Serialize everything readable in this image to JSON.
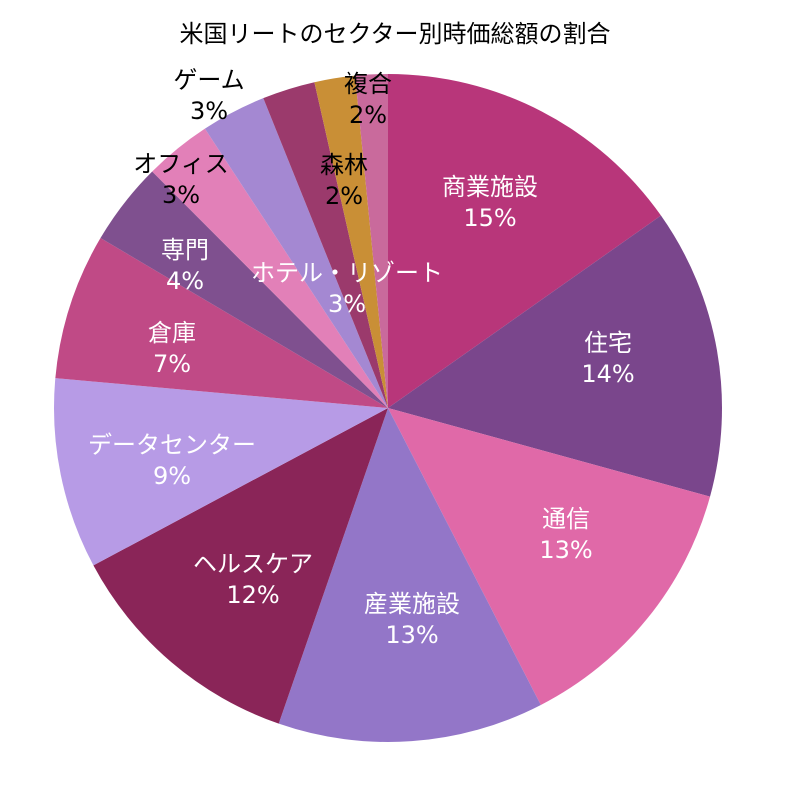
{
  "chart_data": {
    "type": "pie",
    "title": "米国リートのセクター別時価総額の割合",
    "start": "top",
    "direction": "clockwise",
    "slices": [
      {
        "label": "商業施設",
        "pct_label": "15%",
        "value": 15.5,
        "color": "#b8367a",
        "text_color": "#ffffff"
      },
      {
        "label": "住宅",
        "pct_label": "14%",
        "value": 14.3,
        "color": "#7a468c",
        "text_color": "#ffffff"
      },
      {
        "label": "通信",
        "pct_label": "13%",
        "value": 13.4,
        "color": "#e069a8",
        "text_color": "#ffffff"
      },
      {
        "label": "産業施設",
        "pct_label": "13%",
        "value": 13.1,
        "color": "#9376c8",
        "text_color": "#ffffff"
      },
      {
        "label": "ヘルスケア",
        "pct_label": "12%",
        "value": 12.1,
        "color": "#8a2558",
        "text_color": "#ffffff"
      },
      {
        "label": "データセンター",
        "pct_label": "9%",
        "value": 9.4,
        "color": "#b79be6",
        "text_color": "#ffffff"
      },
      {
        "label": "倉庫",
        "pct_label": "7%",
        "value": 7.2,
        "color": "#c04a86",
        "text_color": "#ffffff"
      },
      {
        "label": "専門",
        "pct_label": "4%",
        "value": 4.1,
        "color": "#7f508f",
        "text_color": "#ffffff"
      },
      {
        "label": "オフィス",
        "pct_label": "3%",
        "value": 3.3,
        "color": "#e280b8",
        "text_color": "#000000"
      },
      {
        "label": "ゲーム",
        "pct_label": "3%",
        "value": 3.2,
        "color": "#a488d2",
        "text_color": "#000000"
      },
      {
        "label": "ホテル・リゾート",
        "pct_label": "3%",
        "value": 2.6,
        "color": "#9b3a6c",
        "text_color": "#ffffff"
      },
      {
        "label": "森林",
        "pct_label": "2%",
        "value": 2.0,
        "color": "#c98f36",
        "text_color": "#000000"
      },
      {
        "label": "複合",
        "pct_label": "2%",
        "value": 1.6,
        "color": "#c96a9c",
        "text_color": "#000000"
      }
    ]
  }
}
